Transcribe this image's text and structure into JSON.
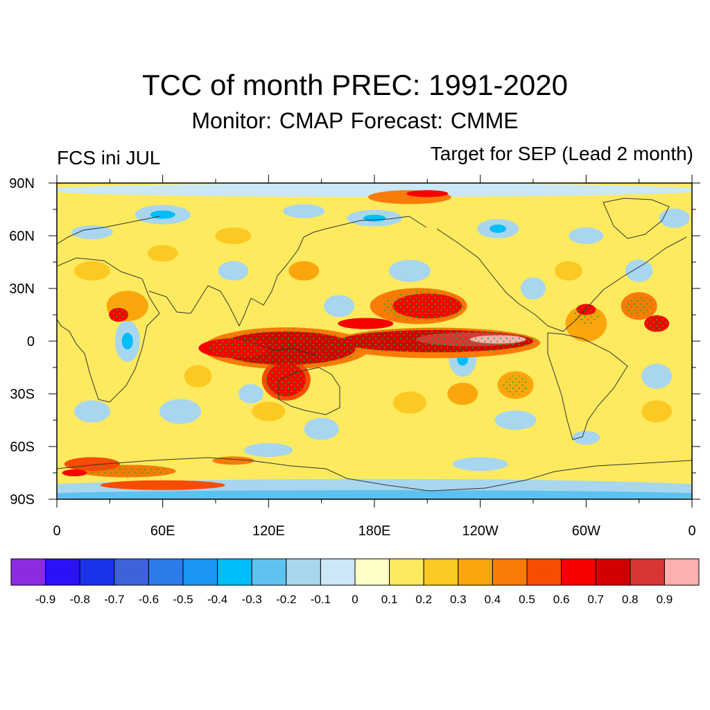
{
  "header": {
    "title": "TCC of month PREC: 1991-2020",
    "subtitle": "Monitor: CMAP   Forecast: CMME",
    "left_label": "FCS ini JUL",
    "right_label": "Target for SEP (Lead 2 month)"
  },
  "map": {
    "lat_labels": [
      "90N",
      "60N",
      "30N",
      "0",
      "30S",
      "60S",
      "90S"
    ],
    "lon_labels": [
      "0",
      "60E",
      "120E",
      "180E",
      "120W",
      "60W",
      "0"
    ],
    "lat_values": [
      90,
      60,
      30,
      0,
      -30,
      -60,
      -90
    ],
    "lon_values": [
      0,
      60,
      120,
      180,
      240,
      300,
      360
    ],
    "stipple_color": "#22aa22",
    "coast_color": "#333333"
  },
  "colorbar": {
    "labels": [
      "-0.9",
      "-0.8",
      "-0.7",
      "-0.6",
      "-0.5",
      "-0.4",
      "-0.3",
      "-0.2",
      "-0.1",
      "0",
      "0.1",
      "0.2",
      "0.3",
      "0.4",
      "0.5",
      "0.6",
      "0.7",
      "0.8",
      "0.9"
    ],
    "colors": [
      "#8b2be2",
      "#2b11f5",
      "#1a33e8",
      "#3f62d9",
      "#2c7be6",
      "#1b96f2",
      "#00bdf7",
      "#5ec2f0",
      "#a8d6ef",
      "#cce7f6",
      "#fefdc8",
      "#fdea5e",
      "#fcc923",
      "#fba60d",
      "#f97b08",
      "#f74c03",
      "#f90000",
      "#d20000",
      "#d83535",
      "#fdb0b0"
    ]
  }
}
